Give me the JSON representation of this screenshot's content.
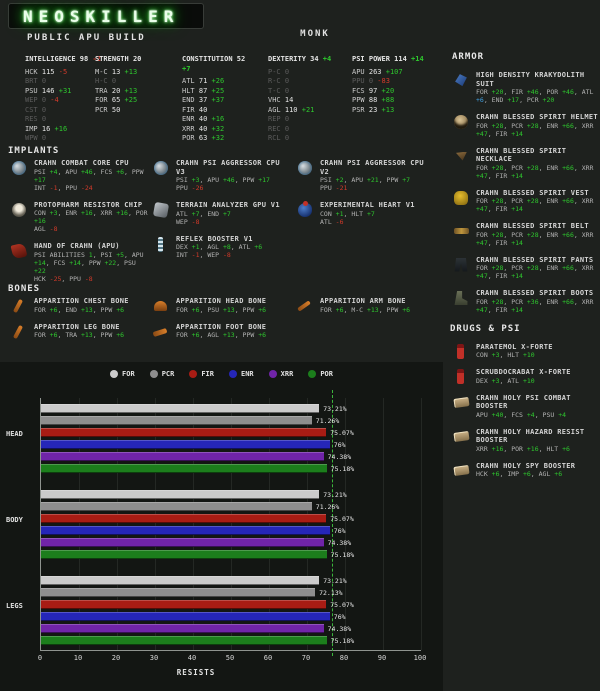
{
  "page": {
    "logo": "NEOSKILLER",
    "subtitle": "PUBLIC APU BUILD",
    "class_title": "MONK"
  },
  "colors": {
    "positive": "#2ec72e",
    "negative": "#d23a2a",
    "special": "#3f9fe0",
    "glow_green": "#22cc22"
  },
  "sections": {
    "implants": "IMPLANTS",
    "bones": "BONES",
    "armor": "ARMOR",
    "drugs": "DRUGS & PSI"
  },
  "stats": [
    {
      "name": "INTELLIGENCE",
      "value": "98",
      "mod": "-2",
      "mod_color": "r",
      "skills": [
        {
          "l": "HCK",
          "v": "115",
          "m": "-5",
          "mc": "r"
        },
        {
          "l": "BRT",
          "v": "0"
        },
        {
          "l": "PSU",
          "v": "146",
          "m": "+31",
          "mc": "g"
        },
        {
          "l": "WEP",
          "v": "0",
          "m": "-4",
          "mc": "r"
        },
        {
          "l": "CST",
          "v": "0"
        },
        {
          "l": "RES",
          "v": "0"
        },
        {
          "l": "IMP",
          "v": "16",
          "m": "+16",
          "mc": "g"
        },
        {
          "l": "WPW",
          "v": "0"
        }
      ]
    },
    {
      "name": "STRENGTH",
      "value": "20",
      "mod": "",
      "mod_color": "g",
      "skills": [
        {
          "l": "M-C",
          "v": "13",
          "m": "+13",
          "mc": "g"
        },
        {
          "l": "H-C",
          "v": "0"
        },
        {
          "l": "TRA",
          "v": "20",
          "m": "+13",
          "mc": "g"
        },
        {
          "l": "FOR",
          "v": "65",
          "m": "+25",
          "mc": "g"
        },
        {
          "l": "PCR",
          "v": "50"
        }
      ]
    },
    {
      "name": "CONSTITUTION",
      "value": "52",
      "mod": "+7",
      "mod_color": "g",
      "skills": [
        {
          "l": "ATL",
          "v": "71",
          "m": "+26",
          "mc": "g"
        },
        {
          "l": "HLT",
          "v": "87",
          "m": "+25",
          "mc": "g"
        },
        {
          "l": "END",
          "v": "37",
          "m": "+37",
          "mc": "g"
        },
        {
          "l": "FIR",
          "v": "40"
        },
        {
          "l": "ENR",
          "v": "40",
          "m": "+16",
          "mc": "g"
        },
        {
          "l": "XRR",
          "v": "40",
          "m": "+32",
          "mc": "g"
        },
        {
          "l": "POR",
          "v": "63",
          "m": "+32",
          "mc": "g"
        }
      ]
    },
    {
      "name": "DEXTERITY",
      "value": "34",
      "mod": "+4",
      "mod_color": "g",
      "skills": [
        {
          "l": "P-C",
          "v": "0"
        },
        {
          "l": "R-C",
          "v": "0"
        },
        {
          "l": "T-C",
          "v": "0"
        },
        {
          "l": "VHC",
          "v": "14"
        },
        {
          "l": "AGL",
          "v": "110",
          "m": "+21",
          "mc": "g"
        },
        {
          "l": "REP",
          "v": "0"
        },
        {
          "l": "REC",
          "v": "0"
        },
        {
          "l": "RCL",
          "v": "0"
        }
      ]
    },
    {
      "name": "PSI POWER",
      "value": "114",
      "mod": "+14",
      "mod_color": "g",
      "skills": [
        {
          "l": "APU",
          "v": "263",
          "m": "+107",
          "mc": "g"
        },
        {
          "l": "PPU",
          "v": "0",
          "m": "-83",
          "mc": "r"
        },
        {
          "l": "FCS",
          "v": "97",
          "m": "+20",
          "mc": "g"
        },
        {
          "l": "PPW",
          "v": "88",
          "m": "+88",
          "mc": "g"
        },
        {
          "l": "PSR",
          "v": "23",
          "m": "+13",
          "mc": "g"
        }
      ]
    }
  ],
  "implants": [
    {
      "name": "CRAHN COMBAT CORE CPU",
      "icon": "cpu-chip-icon",
      "lines": [
        [
          {
            "l": "PSI",
            "v": "+4",
            "c": "g"
          },
          {
            "l": "APU",
            "v": "+46",
            "c": "g"
          },
          {
            "l": "FCS",
            "v": "+6",
            "c": "g"
          },
          {
            "l": "PPW",
            "v": "+17",
            "c": "g"
          }
        ],
        [
          {
            "l": "INT",
            "v": "-1",
            "c": "r"
          },
          {
            "l": "PPU",
            "v": "-24",
            "c": "r"
          }
        ]
      ]
    },
    {
      "name": "PROTOPHARM RESISTOR CHIP",
      "icon": "resistor-chip-icon",
      "lines": [
        [
          {
            "l": "CON",
            "v": "+3",
            "c": "g"
          },
          {
            "l": "ENR",
            "v": "+16",
            "c": "g"
          },
          {
            "l": "XRR",
            "v": "+16",
            "c": "g"
          },
          {
            "l": "POR",
            "v": "+16",
            "c": "g"
          }
        ],
        [
          {
            "l": "AGL",
            "v": "-8",
            "c": "r"
          }
        ]
      ]
    },
    {
      "name": "HAND OF CRAHN (APU)",
      "icon": "hand-icon",
      "lines": [
        [
          {
            "l": "PSI ABILITIES",
            "v": "1",
            "c": "g"
          },
          {
            "l": "PSI",
            "v": "+5",
            "c": "g"
          },
          {
            "l": "APU",
            "v": "+14",
            "c": "g"
          },
          {
            "l": "FCS",
            "v": "+14",
            "c": "g"
          },
          {
            "l": "PPW",
            "v": "+22",
            "c": "g"
          },
          {
            "l": "PSU",
            "v": "+22",
            "c": "g"
          }
        ],
        [
          {
            "l": "HCK",
            "v": "-25",
            "c": "r"
          },
          {
            "l": "PPU",
            "v": "-8",
            "c": "r"
          }
        ]
      ]
    },
    {
      "name": "CRAHN PSI AGGRESSOR CPU V3",
      "icon": "cpu-chip-icon",
      "lines": [
        [
          {
            "l": "PSI",
            "v": "+3",
            "c": "g"
          },
          {
            "l": "APU",
            "v": "+46",
            "c": "g"
          },
          {
            "l": "PPW",
            "v": "+17",
            "c": "g"
          }
        ],
        [
          {
            "l": "PPU",
            "v": "-26",
            "c": "r"
          }
        ]
      ]
    },
    {
      "name": "TERRAIN ANALYZER GPU V1",
      "icon": "gpu-chip-icon",
      "lines": [
        [
          {
            "l": "ATL",
            "v": "+7",
            "c": "g"
          },
          {
            "l": "END",
            "v": "+7",
            "c": "g"
          }
        ],
        [
          {
            "l": "WEP",
            "v": "-8",
            "c": "r"
          }
        ]
      ]
    },
    {
      "name": "REFLEX BOOSTER V1",
      "icon": "spine-icon",
      "lines": [
        [
          {
            "l": "DEX",
            "v": "+1",
            "c": "g"
          },
          {
            "l": "AGL",
            "v": "+8",
            "c": "g"
          },
          {
            "l": "ATL",
            "v": "+6",
            "c": "g"
          }
        ],
        [
          {
            "l": "INT",
            "v": "-1",
            "c": "r"
          },
          {
            "l": "WEP",
            "v": "-8",
            "c": "r"
          }
        ]
      ]
    },
    {
      "name": "CRAHN PSI AGGRESSOR CPU V2",
      "icon": "cpu-chip-icon",
      "lines": [
        [
          {
            "l": "PSI",
            "v": "+2",
            "c": "g"
          },
          {
            "l": "APU",
            "v": "+21",
            "c": "g"
          },
          {
            "l": "PPW",
            "v": "+7",
            "c": "g"
          }
        ],
        [
          {
            "l": "PPU",
            "v": "-21",
            "c": "r"
          }
        ]
      ]
    },
    {
      "name": "EXPERIMENTAL HEART V1",
      "icon": "heart-icon",
      "lines": [
        [
          {
            "l": "CON",
            "v": "+1",
            "c": "g"
          },
          {
            "l": "HLT",
            "v": "+7",
            "c": "g"
          }
        ],
        [
          {
            "l": "ATL",
            "v": "-6",
            "c": "r"
          }
        ]
      ]
    }
  ],
  "bones": [
    {
      "name": "APPARITION CHEST BONE",
      "icon": "chest-bone-icon",
      "lines": [
        [
          {
            "l": "FOR",
            "v": "+6",
            "c": "g"
          },
          {
            "l": "END",
            "v": "+13",
            "c": "g"
          },
          {
            "l": "PPW",
            "v": "+6",
            "c": "g"
          }
        ]
      ]
    },
    {
      "name": "APPARITION LEG BONE",
      "icon": "leg-bone-icon",
      "lines": [
        [
          {
            "l": "FOR",
            "v": "+6",
            "c": "g"
          },
          {
            "l": "TRA",
            "v": "+13",
            "c": "g"
          },
          {
            "l": "PPW",
            "v": "+6",
            "c": "g"
          }
        ]
      ]
    },
    {
      "name": "APPARITION HEAD BONE",
      "icon": "head-bone-icon",
      "lines": [
        [
          {
            "l": "FOR",
            "v": "+6",
            "c": "g"
          },
          {
            "l": "PSU",
            "v": "+13",
            "c": "g"
          },
          {
            "l": "PPW",
            "v": "+6",
            "c": "g"
          }
        ]
      ]
    },
    {
      "name": "APPARITION FOOT BONE",
      "icon": "foot-bone-icon",
      "lines": [
        [
          {
            "l": "FOR",
            "v": "+6",
            "c": "g"
          },
          {
            "l": "AGL",
            "v": "+13",
            "c": "g"
          },
          {
            "l": "PPW",
            "v": "+6",
            "c": "g"
          }
        ]
      ]
    },
    {
      "name": "APPARITION ARM BONE",
      "icon": "arm-bone-icon",
      "lines": [
        [
          {
            "l": "FOR",
            "v": "+6",
            "c": "g"
          },
          {
            "l": "M-C",
            "v": "+13",
            "c": "g"
          },
          {
            "l": "PPW",
            "v": "+6",
            "c": "g"
          }
        ]
      ]
    }
  ],
  "armor": [
    {
      "name": "HIGH DENSITY KRAKYDOLITH SUIT",
      "icon": "suit-icon",
      "lines": [
        [
          {
            "l": "FOR",
            "v": "+20",
            "c": "g"
          },
          {
            "l": "FIR",
            "v": "+46",
            "c": "g"
          },
          {
            "l": "POR",
            "v": "+46",
            "c": "g"
          },
          {
            "l": "ATL",
            "v": "+6",
            "c": "b"
          },
          {
            "l": "END",
            "v": "+17",
            "c": "g"
          },
          {
            "l": "PCR",
            "v": "+20",
            "c": "g"
          }
        ]
      ]
    },
    {
      "name": "CRAHN BLESSED SPIRIT HELMET",
      "icon": "helmet-icon",
      "lines": [
        [
          {
            "l": "FOR",
            "v": "+28",
            "c": "g"
          },
          {
            "l": "PCR",
            "v": "+28",
            "c": "g"
          },
          {
            "l": "ENR",
            "v": "+66",
            "c": "g"
          },
          {
            "l": "XRR",
            "v": "+47",
            "c": "g"
          },
          {
            "l": "FIR",
            "v": "+14",
            "c": "g"
          }
        ]
      ]
    },
    {
      "name": "CRAHN BLESSED SPIRIT NECKLACE",
      "icon": "necklace-icon",
      "lines": [
        [
          {
            "l": "FOR",
            "v": "+28",
            "c": "g"
          },
          {
            "l": "PCR",
            "v": "+28",
            "c": "g"
          },
          {
            "l": "ENR",
            "v": "+66",
            "c": "g"
          },
          {
            "l": "XRR",
            "v": "+47",
            "c": "g"
          },
          {
            "l": "FIR",
            "v": "+14",
            "c": "g"
          }
        ]
      ]
    },
    {
      "name": "CRAHN BLESSED SPIRIT VEST",
      "icon": "vest-icon",
      "lines": [
        [
          {
            "l": "FOR",
            "v": "+28",
            "c": "g"
          },
          {
            "l": "PCR",
            "v": "+28",
            "c": "g"
          },
          {
            "l": "ENR",
            "v": "+66",
            "c": "g"
          },
          {
            "l": "XRR",
            "v": "+47",
            "c": "g"
          },
          {
            "l": "FIR",
            "v": "+14",
            "c": "g"
          }
        ]
      ]
    },
    {
      "name": "CRAHN BLESSED SPIRIT BELT",
      "icon": "belt-icon",
      "lines": [
        [
          {
            "l": "FOR",
            "v": "+28",
            "c": "g"
          },
          {
            "l": "PCR",
            "v": "+28",
            "c": "g"
          },
          {
            "l": "ENR",
            "v": "+66",
            "c": "g"
          },
          {
            "l": "XRR",
            "v": "+47",
            "c": "g"
          },
          {
            "l": "FIR",
            "v": "+14",
            "c": "g"
          }
        ]
      ]
    },
    {
      "name": "CRAHN BLESSED SPIRIT PANTS",
      "icon": "pants-icon",
      "lines": [
        [
          {
            "l": "FOR",
            "v": "+28",
            "c": "g"
          },
          {
            "l": "PCR",
            "v": "+28",
            "c": "g"
          },
          {
            "l": "ENR",
            "v": "+66",
            "c": "g"
          },
          {
            "l": "XRR",
            "v": "+47",
            "c": "g"
          },
          {
            "l": "FIR",
            "v": "+14",
            "c": "g"
          }
        ]
      ]
    },
    {
      "name": "CRAHN BLESSED SPIRIT BOOTS",
      "icon": "boots-icon",
      "lines": [
        [
          {
            "l": "FOR",
            "v": "+28",
            "c": "g"
          },
          {
            "l": "PCR",
            "v": "+36",
            "c": "g"
          },
          {
            "l": "ENR",
            "v": "+66",
            "c": "g"
          },
          {
            "l": "XRR",
            "v": "+47",
            "c": "g"
          },
          {
            "l": "FIR",
            "v": "+14",
            "c": "g"
          }
        ]
      ]
    }
  ],
  "drugs": [
    {
      "name": "PARATEMOL X-FORTE",
      "icon": "vial-icon",
      "lines": [
        [
          {
            "l": "CON",
            "v": "+3",
            "c": "g"
          },
          {
            "l": "HLT",
            "v": "+10",
            "c": "g"
          }
        ]
      ]
    },
    {
      "name": "SCRUBDOCRABAT X-FORTE",
      "icon": "vial-icon",
      "lines": [
        [
          {
            "l": "DEX",
            "v": "+3",
            "c": "g"
          },
          {
            "l": "ATL",
            "v": "+10",
            "c": "g"
          }
        ]
      ]
    },
    {
      "name": "CRAHN HOLY PSI COMBAT BOOSTER",
      "icon": "pill-pack-icon",
      "lines": [
        [
          {
            "l": "APU",
            "v": "+40",
            "c": "g"
          },
          {
            "l": "FCS",
            "v": "+4",
            "c": "g"
          },
          {
            "l": "PSU",
            "v": "+4",
            "c": "g"
          }
        ]
      ]
    },
    {
      "name": "CRAHN HOLY HAZARD RESIST BOOSTER",
      "icon": "pill-pack-icon",
      "lines": [
        [
          {
            "l": "XRR",
            "v": "+16",
            "c": "g"
          },
          {
            "l": "POR",
            "v": "+16",
            "c": "g"
          },
          {
            "l": "HLT",
            "v": "+6",
            "c": "g"
          }
        ]
      ]
    },
    {
      "name": "CRAHN HOLY SPY BOOSTER",
      "icon": "pill-pack-icon",
      "lines": [
        [
          {
            "l": "HCK",
            "v": "+6",
            "c": "g"
          },
          {
            "l": "IMP",
            "v": "+6",
            "c": "g"
          },
          {
            "l": "AGL",
            "v": "+6",
            "c": "g"
          }
        ]
      ]
    }
  ],
  "chart_data": {
    "type": "bar",
    "orientation": "horizontal",
    "title": "",
    "xlabel": "RESISTS",
    "xlim": [
      0,
      100
    ],
    "xticks": [
      0,
      10,
      20,
      30,
      40,
      50,
      60,
      70,
      80,
      90,
      100
    ],
    "grid": true,
    "legend_position": "top",
    "reference_line": 76.5,
    "reference_color": "#3cb43c",
    "categories": [
      "HEAD",
      "BODY",
      "LEGS"
    ],
    "series": [
      {
        "name": "FOR",
        "color": "#cbcbcb",
        "values": [
          73.21,
          73.21,
          73.21
        ],
        "labels": [
          "73.21%",
          "73.21%",
          "73.21%"
        ]
      },
      {
        "name": "PCR",
        "color": "#8e8e8e",
        "values": [
          71.26,
          71.26,
          72.13
        ],
        "labels": [
          "71.26%",
          "71.26%",
          "72.13%"
        ]
      },
      {
        "name": "FIR",
        "color": "#a81c14",
        "values": [
          75.07,
          75.07,
          75.07
        ],
        "labels": [
          "75.07%",
          "75.07%",
          "75.07%"
        ]
      },
      {
        "name": "ENR",
        "color": "#2526b8",
        "values": [
          76,
          76,
          76
        ],
        "labels": [
          "76%",
          "76%",
          "76%"
        ]
      },
      {
        "name": "XRR",
        "color": "#7024a8",
        "values": [
          74.38,
          74.38,
          74.38
        ],
        "labels": [
          "74.38%",
          "74.38%",
          "74.38%"
        ]
      },
      {
        "name": "POR",
        "color": "#1c7e1c",
        "values": [
          75.18,
          75.18,
          75.18
        ],
        "labels": [
          "75.18%",
          "75.18%",
          "75.18%"
        ]
      }
    ]
  }
}
